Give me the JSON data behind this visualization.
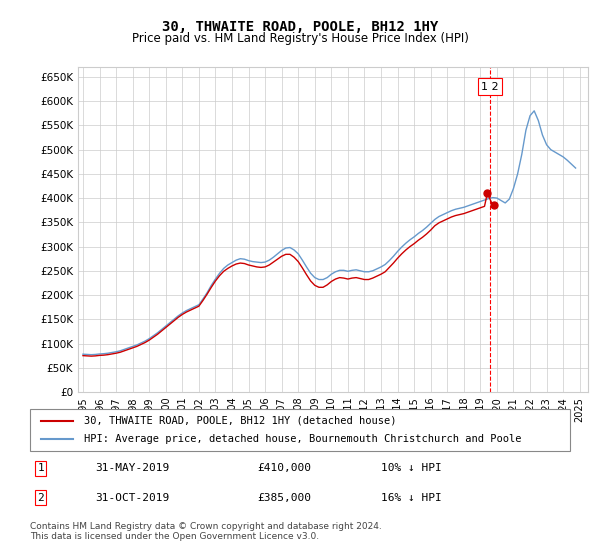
{
  "title": "30, THWAITE ROAD, POOLE, BH12 1HY",
  "subtitle": "Price paid vs. HM Land Registry's House Price Index (HPI)",
  "ylim": [
    0,
    670000
  ],
  "yticks": [
    0,
    50000,
    100000,
    150000,
    200000,
    250000,
    300000,
    350000,
    400000,
    450000,
    500000,
    550000,
    600000,
    650000
  ],
  "ytick_labels": [
    "£0",
    "£50K",
    "£100K",
    "£150K",
    "£200K",
    "£250K",
    "£300K",
    "£350K",
    "£400K",
    "£450K",
    "£500K",
    "£550K",
    "£600K",
    "£650K"
  ],
  "x_start_year": 1995,
  "x_end_year": 2025,
  "xtick_years": [
    1995,
    1996,
    1997,
    1998,
    1999,
    2000,
    2001,
    2002,
    2003,
    2004,
    2005,
    2006,
    2007,
    2008,
    2009,
    2010,
    2011,
    2012,
    2013,
    2014,
    2015,
    2016,
    2017,
    2018,
    2019,
    2020,
    2021,
    2022,
    2023,
    2024,
    2025
  ],
  "red_line_color": "#cc0000",
  "blue_line_color": "#6699cc",
  "grid_color": "#cccccc",
  "background_color": "#ffffff",
  "marker1_x": 2019.42,
  "marker1_y": 410000,
  "marker2_x": 2019.83,
  "marker2_y": 385000,
  "marker1_label": "1",
  "marker2_label": "2",
  "vline_x": 2019.6,
  "legend_entry1": "30, THWAITE ROAD, POOLE, BH12 1HY (detached house)",
  "legend_entry2": "HPI: Average price, detached house, Bournemouth Christchurch and Poole",
  "table_row1": [
    "1",
    "31-MAY-2019",
    "£410,000",
    "10% ↓ HPI"
  ],
  "table_row2": [
    "2",
    "31-OCT-2019",
    "£385,000",
    "16% ↓ HPI"
  ],
  "footer": "Contains HM Land Registry data © Crown copyright and database right 2024.\nThis data is licensed under the Open Government Licence v3.0.",
  "hpi_years": [
    1995.0,
    1995.25,
    1995.5,
    1995.75,
    1996.0,
    1996.25,
    1996.5,
    1996.75,
    1997.0,
    1997.25,
    1997.5,
    1997.75,
    1998.0,
    1998.25,
    1998.5,
    1998.75,
    1999.0,
    1999.25,
    1999.5,
    1999.75,
    2000.0,
    2000.25,
    2000.5,
    2000.75,
    2001.0,
    2001.25,
    2001.5,
    2001.75,
    2002.0,
    2002.25,
    2002.5,
    2002.75,
    2003.0,
    2003.25,
    2003.5,
    2003.75,
    2004.0,
    2004.25,
    2004.5,
    2004.75,
    2005.0,
    2005.25,
    2005.5,
    2005.75,
    2006.0,
    2006.25,
    2006.5,
    2006.75,
    2007.0,
    2007.25,
    2007.5,
    2007.75,
    2008.0,
    2008.25,
    2008.5,
    2008.75,
    2009.0,
    2009.25,
    2009.5,
    2009.75,
    2010.0,
    2010.25,
    2010.5,
    2010.75,
    2011.0,
    2011.25,
    2011.5,
    2011.75,
    2012.0,
    2012.25,
    2012.5,
    2012.75,
    2013.0,
    2013.25,
    2013.5,
    2013.75,
    2014.0,
    2014.25,
    2014.5,
    2014.75,
    2015.0,
    2015.25,
    2015.5,
    2015.75,
    2016.0,
    2016.25,
    2016.5,
    2016.75,
    2017.0,
    2017.25,
    2017.5,
    2017.75,
    2018.0,
    2018.25,
    2018.5,
    2018.75,
    2019.0,
    2019.25,
    2019.5,
    2019.75,
    2020.0,
    2020.25,
    2020.5,
    2020.75,
    2021.0,
    2021.25,
    2021.5,
    2021.75,
    2022.0,
    2022.25,
    2022.5,
    2022.75,
    2023.0,
    2023.25,
    2023.5,
    2023.75,
    2024.0,
    2024.25,
    2024.5,
    2024.75
  ],
  "hpi_values": [
    78000,
    77500,
    77000,
    77500,
    78500,
    79000,
    80000,
    81500,
    83000,
    85000,
    88000,
    91000,
    94000,
    97000,
    101000,
    105000,
    110000,
    116000,
    122000,
    129000,
    136000,
    143000,
    150000,
    157000,
    163000,
    168000,
    172000,
    176000,
    180000,
    192000,
    205000,
    220000,
    233000,
    245000,
    255000,
    262000,
    267000,
    272000,
    275000,
    274000,
    271000,
    269000,
    268000,
    267000,
    268000,
    272000,
    278000,
    285000,
    292000,
    297000,
    298000,
    293000,
    285000,
    272000,
    258000,
    245000,
    236000,
    232000,
    232000,
    236000,
    243000,
    248000,
    251000,
    251000,
    249000,
    251000,
    252000,
    250000,
    248000,
    248000,
    250000,
    254000,
    258000,
    263000,
    271000,
    280000,
    290000,
    299000,
    307000,
    314000,
    320000,
    327000,
    333000,
    340000,
    348000,
    356000,
    362000,
    366000,
    370000,
    374000,
    377000,
    379000,
    381000,
    384000,
    387000,
    390000,
    393000,
    396000,
    399000,
    401000,
    400000,
    395000,
    390000,
    398000,
    420000,
    450000,
    490000,
    540000,
    570000,
    580000,
    560000,
    530000,
    510000,
    500000,
    495000,
    490000,
    485000,
    478000,
    470000,
    462000
  ],
  "red_years": [
    1995.0,
    1995.25,
    1995.5,
    1995.75,
    1996.0,
    1996.25,
    1996.5,
    1996.75,
    1997.0,
    1997.25,
    1997.5,
    1997.75,
    1998.0,
    1998.25,
    1998.5,
    1998.75,
    1999.0,
    1999.25,
    1999.5,
    1999.75,
    2000.0,
    2000.25,
    2000.5,
    2000.75,
    2001.0,
    2001.25,
    2001.5,
    2001.75,
    2002.0,
    2002.25,
    2002.5,
    2002.75,
    2003.0,
    2003.25,
    2003.5,
    2003.75,
    2004.0,
    2004.25,
    2004.5,
    2004.75,
    2005.0,
    2005.25,
    2005.5,
    2005.75,
    2006.0,
    2006.25,
    2006.5,
    2006.75,
    2007.0,
    2007.25,
    2007.5,
    2007.75,
    2008.0,
    2008.25,
    2008.5,
    2008.75,
    2009.0,
    2009.25,
    2009.5,
    2009.75,
    2010.0,
    2010.25,
    2010.5,
    2010.75,
    2011.0,
    2011.25,
    2011.5,
    2011.75,
    2012.0,
    2012.25,
    2012.5,
    2012.75,
    2013.0,
    2013.25,
    2013.5,
    2013.75,
    2014.0,
    2014.25,
    2014.5,
    2014.75,
    2015.0,
    2015.25,
    2015.5,
    2015.75,
    2016.0,
    2016.25,
    2016.5,
    2016.75,
    2017.0,
    2017.25,
    2017.5,
    2017.75,
    2018.0,
    2018.25,
    2018.5,
    2018.75,
    2019.0,
    2019.25,
    2019.42,
    2019.75,
    2020.0
  ],
  "red_values": [
    75000,
    74500,
    74000,
    74500,
    75500,
    76000,
    77000,
    78500,
    80000,
    82000,
    85000,
    88000,
    91000,
    94000,
    98000,
    102000,
    107000,
    113000,
    119000,
    126000,
    133000,
    140000,
    147000,
    154000,
    160000,
    165000,
    169000,
    173000,
    177000,
    189000,
    202000,
    216000,
    229000,
    240000,
    249000,
    255000,
    260000,
    264000,
    266000,
    265000,
    262000,
    260000,
    258000,
    257000,
    258000,
    262000,
    268000,
    274000,
    280000,
    284000,
    284000,
    278000,
    269000,
    256000,
    242000,
    229000,
    220000,
    216000,
    216000,
    221000,
    228000,
    233000,
    236000,
    235000,
    233000,
    235000,
    236000,
    234000,
    232000,
    232000,
    235000,
    239000,
    243000,
    248000,
    257000,
    266000,
    276000,
    285000,
    293000,
    300000,
    306000,
    313000,
    319000,
    326000,
    334000,
    343000,
    349000,
    353000,
    357000,
    361000,
    364000,
    366000,
    368000,
    371000,
    374000,
    377000,
    380000,
    383000,
    410000,
    385000,
    385000
  ]
}
